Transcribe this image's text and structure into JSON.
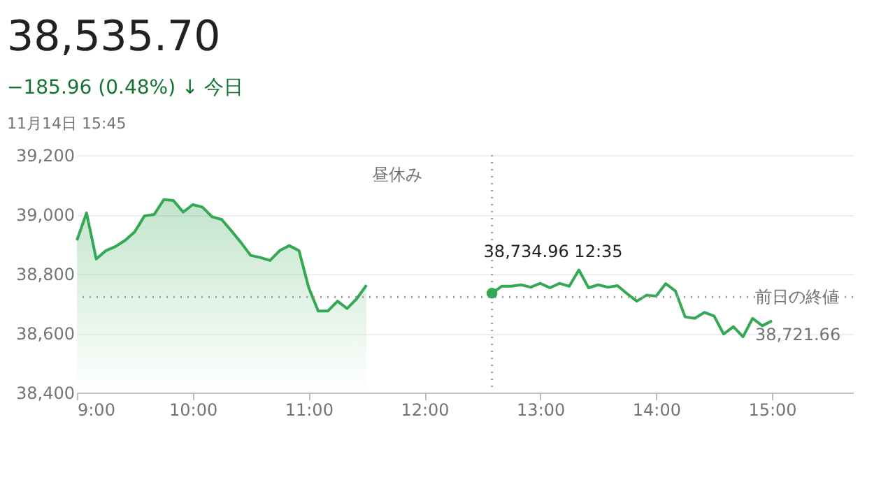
{
  "chart_data": {
    "type": "line",
    "title": "38,535.70",
    "subtitle": "−185.96 (0.48%) ↓ 今日",
    "annotations": [
      "11月14日 15:45",
      "昼休み",
      {
        "text": "38,734.96  12:35",
        "x": 12.583,
        "y": 38734.96
      }
    ],
    "series": [
      {
        "type": "area",
        "color": "#34a853",
        "x": [
          9.0,
          9.083,
          9.167,
          9.25,
          9.333,
          9.417,
          9.5,
          9.583,
          9.667,
          9.75,
          9.833,
          9.917,
          10.0,
          10.083,
          10.167,
          10.25,
          10.333,
          10.417,
          10.5,
          10.583,
          10.667,
          10.75,
          10.833,
          10.917,
          11.0,
          11.083,
          11.167,
          11.25,
          11.333,
          11.417,
          11.5
        ],
        "values": [
          38913,
          39005,
          38850,
          38878,
          38892,
          38913,
          38942,
          38995,
          39000,
          39050,
          39047,
          39008,
          39033,
          39025,
          38992,
          38983,
          38945,
          38905,
          38862,
          38855,
          38845,
          38878,
          38895,
          38878,
          38755,
          38675,
          38675,
          38708,
          38683,
          38717,
          38762
        ]
      },
      {
        "type": "line",
        "color": "#34a853",
        "x": [
          12.583,
          12.667,
          12.75,
          12.833,
          12.917,
          13.0,
          13.083,
          13.167,
          13.25,
          13.333,
          13.417,
          13.5,
          13.583,
          13.667,
          13.75,
          13.833,
          13.917,
          14.0,
          14.083,
          14.167,
          14.25,
          14.333,
          14.417,
          14.5,
          14.583,
          14.667,
          14.75,
          14.833,
          14.917,
          15.0
        ],
        "values": [
          38734.96,
          38758,
          38758,
          38763,
          38755,
          38768,
          38753,
          38768,
          38758,
          38813,
          38753,
          38763,
          38755,
          38760,
          38733,
          38708,
          38728,
          38725,
          38767,
          38742,
          38655,
          38650,
          38670,
          38658,
          38597,
          38622,
          38588,
          38650,
          38625,
          38642
        ]
      }
    ],
    "xlim": [
      9,
      15.7
    ],
    "xticks": [
      {
        "value": 9,
        "label": "9:00"
      },
      {
        "value": 10,
        "label": "10:00"
      },
      {
        "value": 11,
        "label": "11:00"
      },
      {
        "value": 12,
        "label": "12:00"
      },
      {
        "value": 13,
        "label": "13:00"
      },
      {
        "value": 14,
        "label": "14:00"
      },
      {
        "value": 15,
        "label": "15:00"
      }
    ],
    "ylim": [
      38400,
      39200
    ],
    "yticks": [
      {
        "value": 38400,
        "label": "38,400"
      },
      {
        "value": 38600,
        "label": "38,600"
      },
      {
        "value": 38800,
        "label": "38,800"
      },
      {
        "value": 39000,
        "label": "39,000"
      },
      {
        "value": 39200,
        "label": "39,200"
      }
    ],
    "ref_lines": [
      {
        "axis": "y",
        "value": 38721.66,
        "label": "前日の終値 38,721.66",
        "line_style": "dotted",
        "color": "#9e9e9e"
      },
      {
        "axis": "x",
        "value": 12.583,
        "line_style": "dotted",
        "color": "#9e9e9e"
      }
    ],
    "grid": "y",
    "line_style": "solid",
    "marker": "none"
  }
}
